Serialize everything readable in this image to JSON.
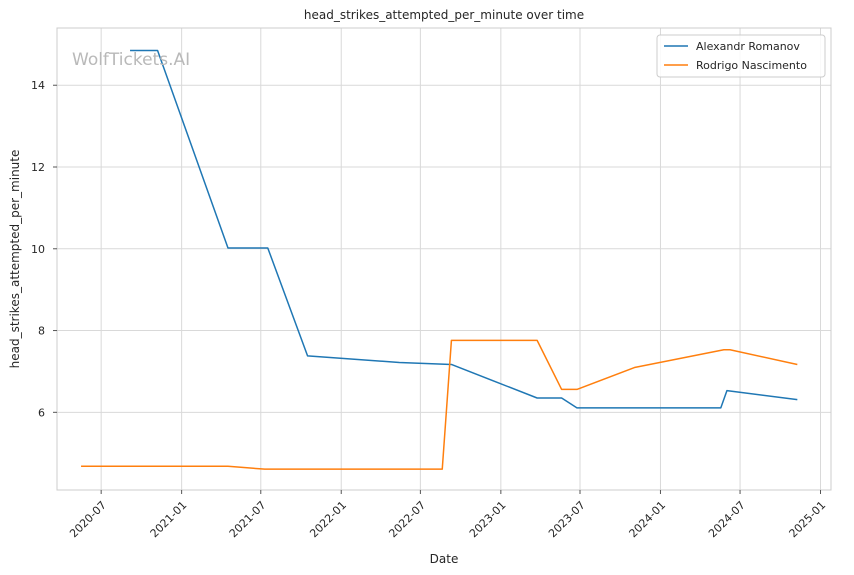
{
  "chart_data": {
    "type": "line",
    "title": "head_strikes_attempted_per_minute over time",
    "xlabel": "Date",
    "ylabel": "head_strikes_attempted_per_minute",
    "watermark": "WolfTickets.AI",
    "xlim": [
      "2020-03-22",
      "2025-01-25"
    ],
    "ylim": [
      4.1,
      15.4
    ],
    "x_ticks": [
      "2020-07",
      "2021-01",
      "2021-07",
      "2022-01",
      "2022-07",
      "2023-01",
      "2023-07",
      "2024-01",
      "2024-07",
      "2025-01"
    ],
    "y_ticks": [
      6,
      8,
      10,
      12,
      14
    ],
    "grid": true,
    "legend_position": "top-right",
    "series": [
      {
        "name": "Alexandr Romanov",
        "color": "#1f77b4",
        "points": [
          [
            "2020-09-05",
            14.85
          ],
          [
            "2020-11-07",
            14.85
          ],
          [
            "2021-04-17",
            10.02
          ],
          [
            "2021-07-17",
            10.02
          ],
          [
            "2021-10-16",
            7.38
          ],
          [
            "2022-05-14",
            7.22
          ],
          [
            "2022-09-10",
            7.17
          ],
          [
            "2023-03-25",
            6.35
          ],
          [
            "2023-05-20",
            6.35
          ],
          [
            "2023-06-24",
            6.11
          ],
          [
            "2024-05-18",
            6.11
          ],
          [
            "2024-06-01",
            6.53
          ],
          [
            "2024-11-09",
            6.31
          ]
        ]
      },
      {
        "name": "Rodrigo Nascimento",
        "color": "#ff7f0e",
        "points": [
          [
            "2020-05-16",
            4.68
          ],
          [
            "2021-04-17",
            4.68
          ],
          [
            "2021-07-10",
            4.61
          ],
          [
            "2022-08-20",
            4.61
          ],
          [
            "2022-09-10",
            7.76
          ],
          [
            "2023-03-25",
            7.76
          ],
          [
            "2023-05-20",
            6.56
          ],
          [
            "2023-06-24",
            6.56
          ],
          [
            "2023-11-04",
            7.1
          ],
          [
            "2024-05-25",
            7.53
          ],
          [
            "2024-06-08",
            7.53
          ],
          [
            "2024-11-09",
            7.17
          ]
        ]
      }
    ]
  }
}
